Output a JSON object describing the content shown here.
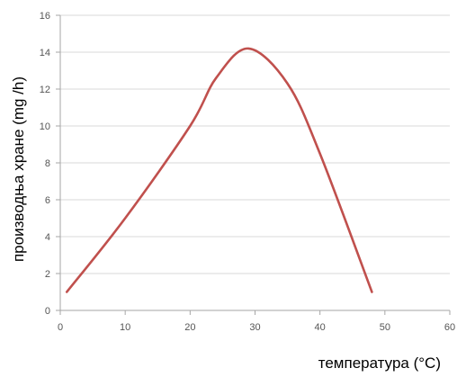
{
  "chart_data": {
    "type": "line",
    "title": "",
    "xlabel": "температура (°C)",
    "ylabel": "производња хране (mg /h)",
    "xlim": [
      0,
      60
    ],
    "ylim": [
      0,
      16
    ],
    "x_ticks": [
      0,
      10,
      20,
      30,
      40,
      50,
      60
    ],
    "y_ticks": [
      0,
      2,
      4,
      6,
      8,
      10,
      12,
      14,
      16
    ],
    "grid": "horizontal",
    "legend": "none",
    "series": [
      {
        "color": "#c0504d",
        "points": [
          {
            "x": 1,
            "y": 1.0
          },
          {
            "x": 10,
            "y": 5.0
          },
          {
            "x": 20,
            "y": 10.0
          },
          {
            "x": 24,
            "y": 12.6
          },
          {
            "x": 29,
            "y": 14.2
          },
          {
            "x": 35,
            "y": 12.3
          },
          {
            "x": 40,
            "y": 8.5
          },
          {
            "x": 48,
            "y": 1.0
          }
        ]
      }
    ]
  }
}
